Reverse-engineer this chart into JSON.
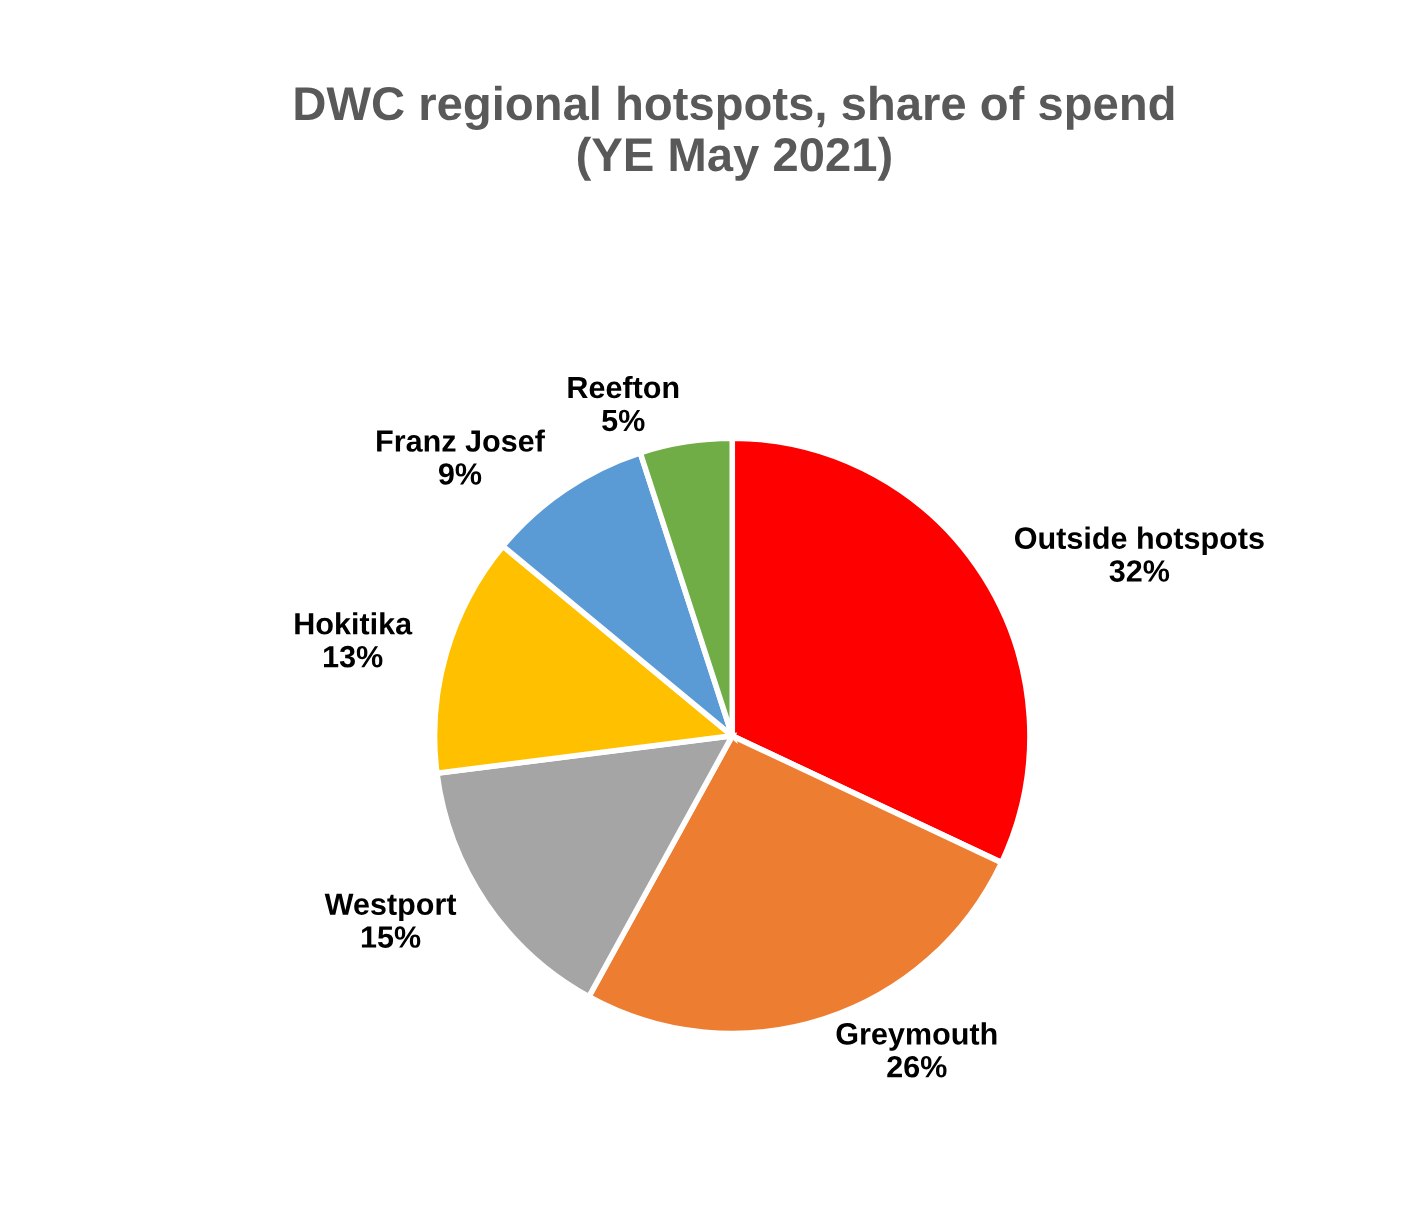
{
  "chart_data": {
    "type": "pie",
    "title": "DWC regional hotspots, share of spend\n(YE May 2021)",
    "categories": [
      "Outside hotspots",
      "Greymouth",
      "Westport",
      "Hokitika",
      "Franz Josef",
      "Reefton"
    ],
    "values": [
      32,
      26,
      15,
      13,
      9,
      5
    ],
    "value_labels": [
      "32%",
      "26%",
      "15%",
      "13%",
      "9%",
      "5%"
    ],
    "colors": [
      "#ff0000",
      "#ed7d31",
      "#a5a5a5",
      "#ffc000",
      "#5b9bd5",
      "#70ad47"
    ]
  }
}
